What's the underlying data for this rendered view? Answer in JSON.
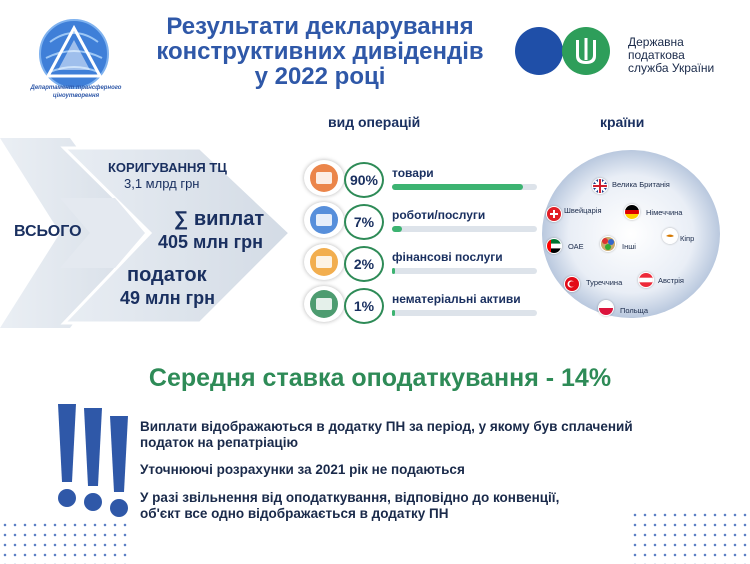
{
  "header": {
    "title_line1": "Результати декларування",
    "title_line2": "конструктивних дивідендів",
    "title_line3": "у 2022 році",
    "dept_logo_text": "Департамент трансферного ціноутворення",
    "dps_line1": "Державна",
    "dps_line2": "податкова",
    "dps_line3": "служба України"
  },
  "sections": {
    "operations": "вид операцій",
    "countries": "країни"
  },
  "totals": {
    "label": "ВСЬОГО",
    "adjust_label": "КОРИГУВАННЯ ТЦ",
    "adjust_value": "3,1 млрд грн",
    "payments_label": "∑ виплат",
    "payments_value": "405 млн грн",
    "tax_label": "податок",
    "tax_value": "49 млн грн"
  },
  "operations": [
    {
      "pct": "90%",
      "label": "товари",
      "fraction": 0.9,
      "icon": "goods-icon"
    },
    {
      "pct": "7%",
      "label": "роботи/послуги",
      "fraction": 0.07,
      "icon": "worker-icon"
    },
    {
      "pct": "2%",
      "label": "фінансові послуги",
      "fraction": 0.02,
      "icon": "finance-icon"
    },
    {
      "pct": "1%",
      "label": "нематеріальні активи",
      "fraction": 0.01,
      "icon": "gears-head-icon"
    }
  ],
  "countries": [
    {
      "name": "Велика Британія",
      "flag": "uk"
    },
    {
      "name": "Швейцарія",
      "flag": "ch"
    },
    {
      "name": "Німеччина",
      "flag": "de"
    },
    {
      "name": "Кіпр",
      "flag": "cy"
    },
    {
      "name": "ОАЕ",
      "flag": "ae"
    },
    {
      "name": "Інші",
      "flag": "other"
    },
    {
      "name": "Туреччина",
      "flag": "tr"
    },
    {
      "name": "Австрія",
      "flag": "at"
    },
    {
      "name": "Польща",
      "flag": "pl"
    }
  ],
  "rate_text": "Середня ставка оподаткування - 14%",
  "notes": {
    "note1_line1": "Виплати відображаються в додатку ПН за період, у якому був сплачений",
    "note1_line2": "податок на репатріацію",
    "note2": "Уточнюючі розрахунки за 2021 рік не подаються",
    "note3_line1": "У разі звільнення від оподаткування, відповідно до конвенції,",
    "note3_line2": "об'єкт все одно відображається в додатку ПН"
  },
  "colors": {
    "title_blue": "#2f58a8",
    "accent_green": "#2e8b57",
    "bar_green": "#3cb371",
    "navy": "#1a3060"
  }
}
